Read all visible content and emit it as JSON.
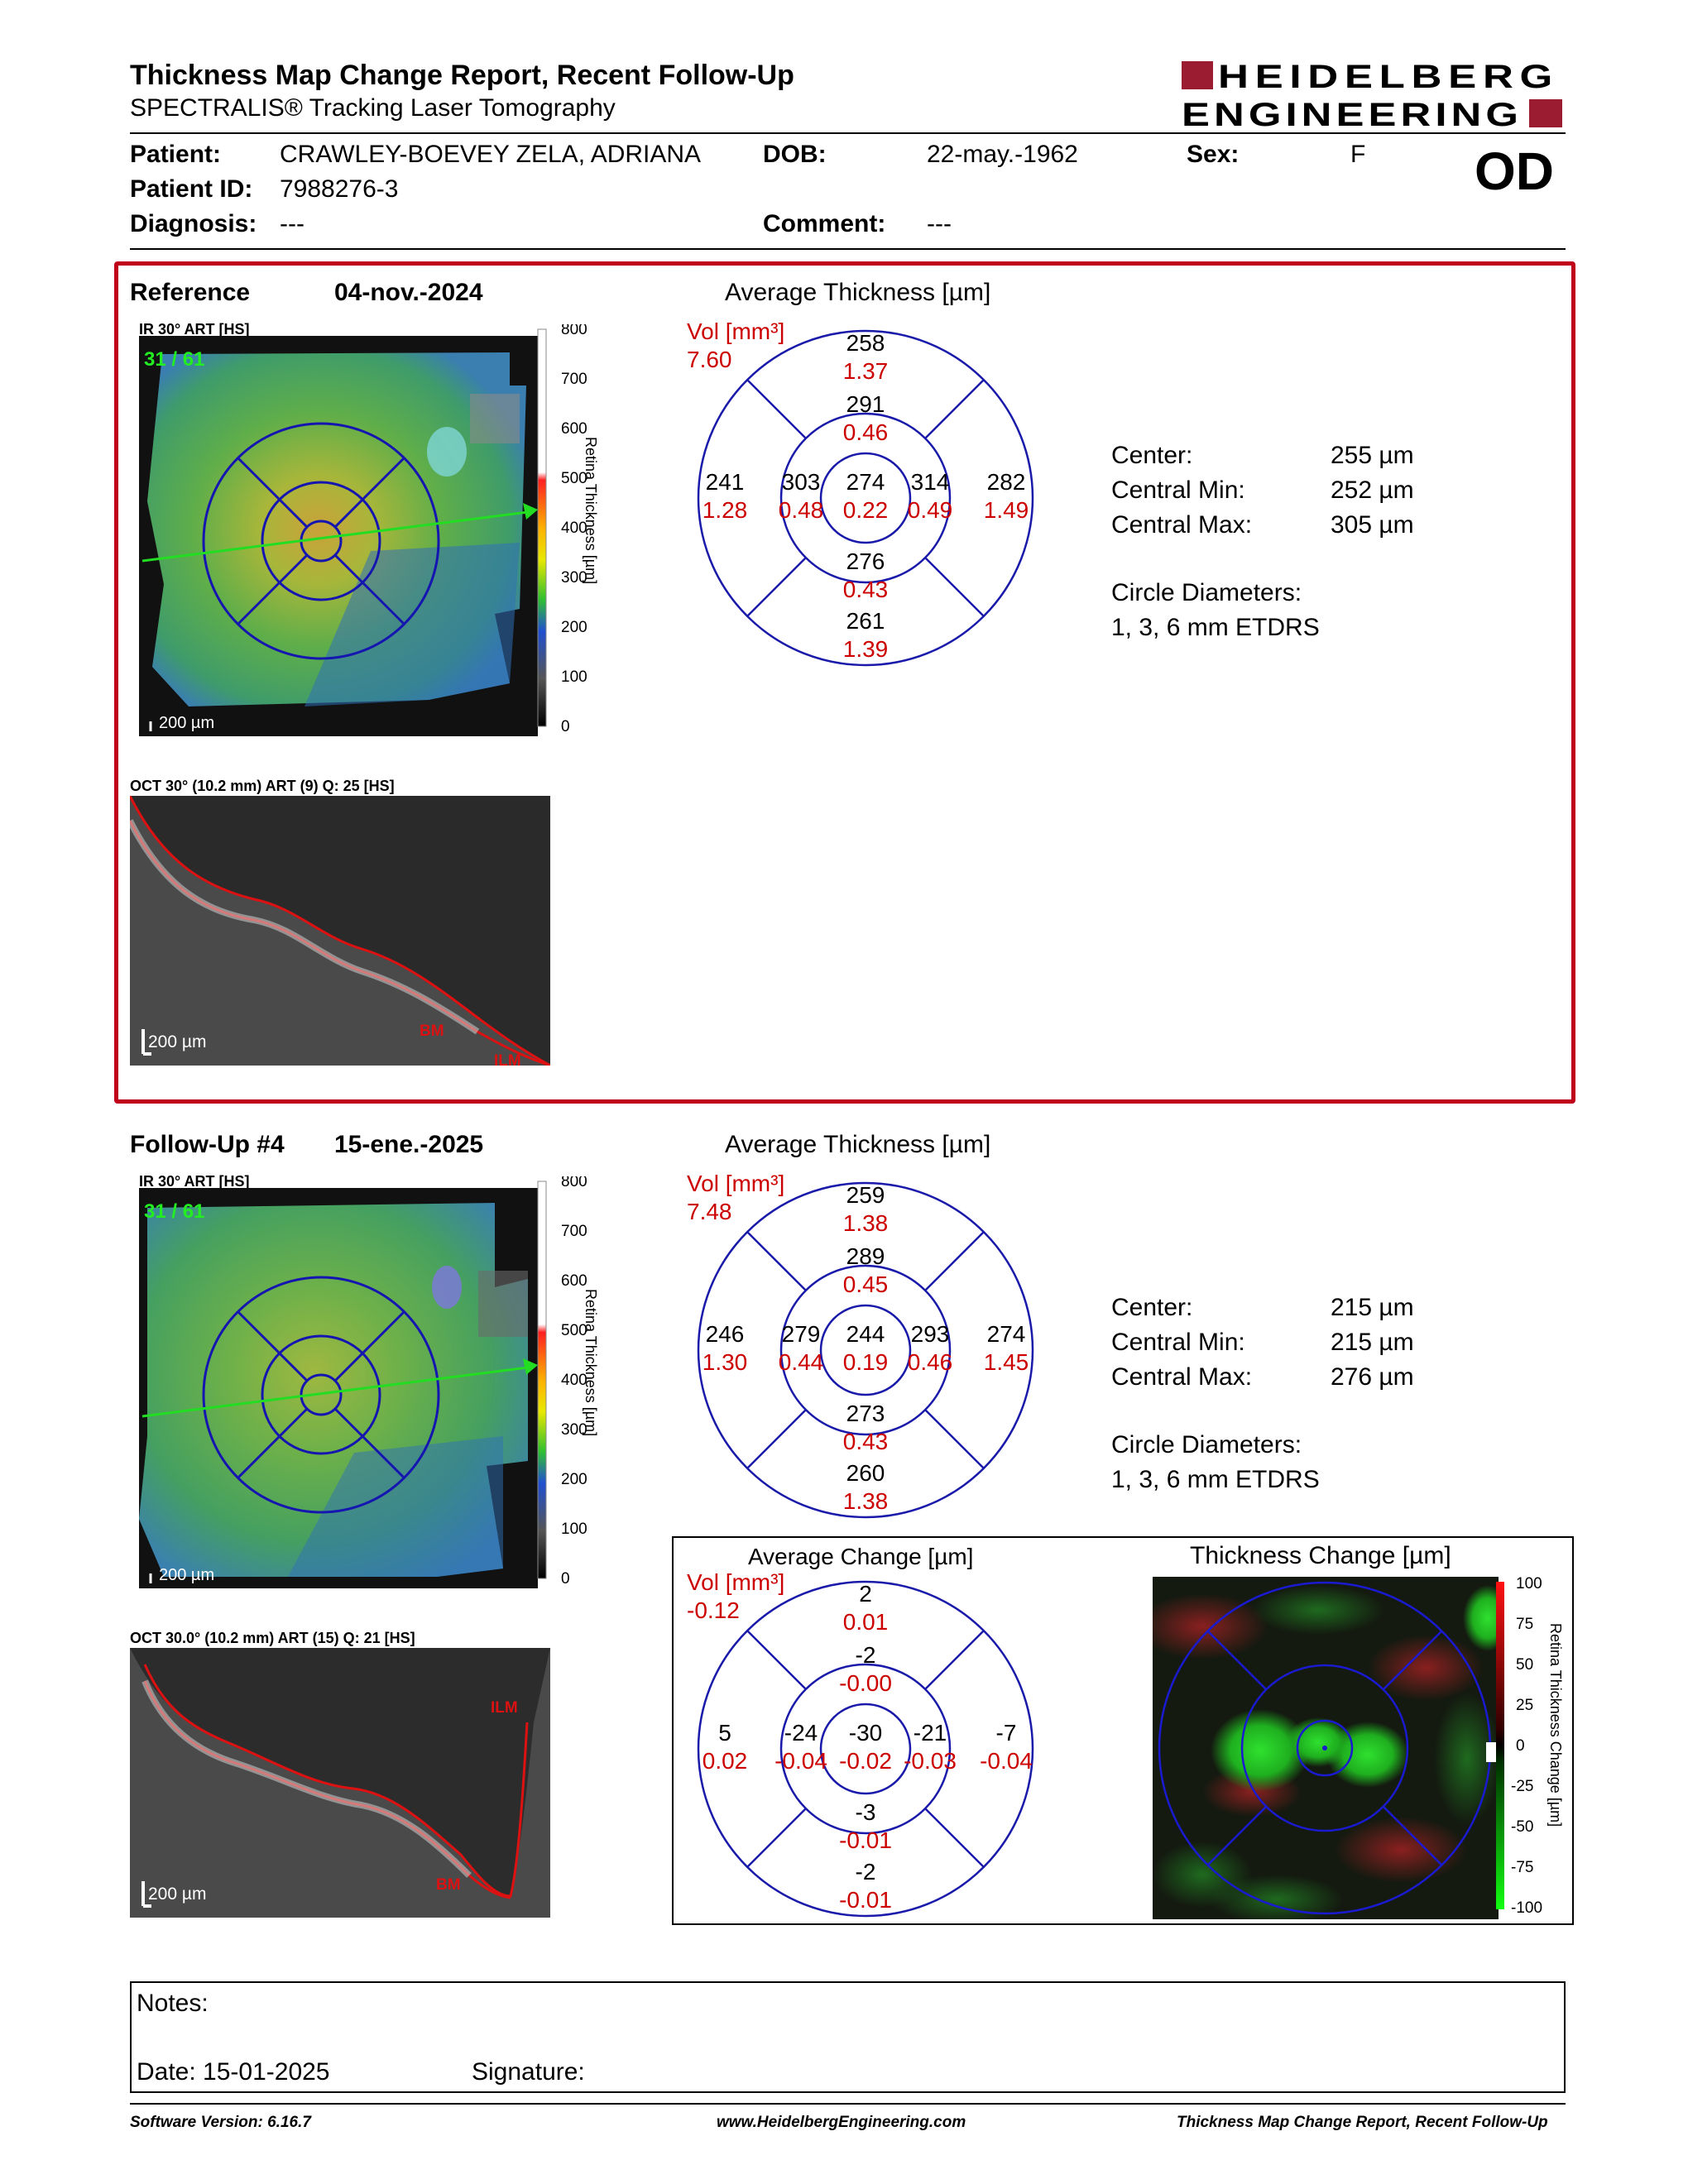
{
  "header": {
    "title": "Thickness Map Change Report, Recent Follow-Up",
    "subtitle": "SPECTRALIS® Tracking Laser Tomography",
    "logo_line1": "HEIDELBERG",
    "logo_line2": "ENGINEERING",
    "brand_color": "#9b1b30"
  },
  "patient": {
    "patient_label": "Patient:",
    "patient_value": "CRAWLEY-BOEVEY ZELA, ADRIANA",
    "dob_label": "DOB:",
    "dob_value": "22-may.-1962",
    "sex_label": "Sex:",
    "sex_value": "F",
    "id_label": "Patient ID:",
    "id_value": "7988276-3",
    "diagnosis_label": "Diagnosis:",
    "diagnosis_value": "---",
    "comment_label": "Comment:",
    "comment_value": "---",
    "eye": "OD"
  },
  "reference": {
    "label": "Reference",
    "date": "04-nov.-2024",
    "ir_caption": "IR 30° ART [HS]",
    "frame": "31 / 61",
    "scale": "200 µm",
    "colorbar_ticks": [
      "800",
      "700",
      "600",
      "500",
      "400",
      "300",
      "200",
      "100",
      "0"
    ],
    "colorbar_title": "Retina Thickness [µm]",
    "oct_caption": "OCT 30° (10.2 mm) ART (9) Q: 25 [HS]",
    "oct_scale": "200 µm",
    "oct_labels": [
      "BM",
      "ILM"
    ],
    "avg_title": "Average Thickness [µm]",
    "vol_label": "Vol [mm³]",
    "vol_value": "7.60",
    "grid": {
      "outer_sup": [
        "258",
        "1.37"
      ],
      "inner_sup": [
        "291",
        "0.46"
      ],
      "center": [
        "274",
        "0.22"
      ],
      "inner_temp": [
        "303",
        "0.48"
      ],
      "inner_nasal": [
        "314",
        "0.49"
      ],
      "outer_temp": [
        "241",
        "1.28"
      ],
      "outer_nasal": [
        "282",
        "1.49"
      ],
      "inner_inf": [
        "276",
        "0.43"
      ],
      "outer_inf": [
        "261",
        "1.39"
      ]
    },
    "center_label": "Center:",
    "center_value": "255 µm",
    "cmin_label": "Central Min:",
    "cmin_value": "252 µm",
    "cmax_label": "Central Max:",
    "cmax_value": "305 µm",
    "diam_label": "Circle Diameters:",
    "diam_value": "1, 3, 6 mm ETDRS"
  },
  "followup": {
    "label": "Follow-Up #4",
    "date": "15-ene.-2025",
    "ir_caption": "IR 30° ART [HS]",
    "frame": "31 / 61",
    "scale": "200 µm",
    "colorbar_ticks": [
      "800",
      "700",
      "600",
      "500",
      "400",
      "300",
      "200",
      "100",
      "0"
    ],
    "colorbar_title": "Retina Thickness [µm]",
    "oct_caption": "OCT 30.0° (10.2 mm) ART (15) Q: 21 [HS]",
    "oct_scale": "200 µm",
    "oct_labels": [
      "ILM",
      "BM"
    ],
    "avg_title": "Average Thickness [µm]",
    "vol_label": "Vol [mm³]",
    "vol_value": "7.48",
    "grid": {
      "outer_sup": [
        "259",
        "1.38"
      ],
      "inner_sup": [
        "289",
        "0.45"
      ],
      "center": [
        "244",
        "0.19"
      ],
      "inner_temp": [
        "279",
        "0.44"
      ],
      "inner_nasal": [
        "293",
        "0.46"
      ],
      "outer_temp": [
        "246",
        "1.30"
      ],
      "outer_nasal": [
        "274",
        "1.45"
      ],
      "inner_inf": [
        "273",
        "0.43"
      ],
      "outer_inf": [
        "260",
        "1.38"
      ]
    },
    "center_label": "Center:",
    "center_value": "215 µm",
    "cmin_label": "Central Min:",
    "cmin_value": "215 µm",
    "cmax_label": "Central Max:",
    "cmax_value": "276 µm",
    "diam_label": "Circle Diameters:",
    "diam_value": "1, 3, 6 mm ETDRS"
  },
  "change": {
    "avg_title": "Average Change [µm]",
    "vol_label": "Vol [mm³]",
    "vol_value": "-0.12",
    "grid": {
      "outer_sup": [
        "2",
        "0.01"
      ],
      "inner_sup": [
        "-2",
        "-0.00"
      ],
      "center": [
        "-30",
        "-0.02"
      ],
      "inner_temp": [
        "-24",
        "-0.04"
      ],
      "inner_nasal": [
        "-21",
        "-0.03"
      ],
      "outer_temp": [
        "5",
        "0.02"
      ],
      "outer_nasal": [
        "-7",
        "-0.04"
      ],
      "inner_inf": [
        "-3",
        "-0.01"
      ],
      "outer_inf": [
        "-2",
        "-0.01"
      ]
    },
    "map_title": "Thickness Change [µm]",
    "colorbar_ticks": [
      "100",
      "75",
      "50",
      "25",
      "0",
      "-25",
      "-50",
      "-75",
      "-100"
    ],
    "colorbar_title": "Retina Thickness Change [µm]"
  },
  "notes": {
    "notes_label": "Notes:",
    "date_label": "Date: 15-01-2025",
    "signature_label": "Signature:"
  },
  "footer": {
    "software": "Software Version: 6.16.7",
    "website": "www.HeidelbergEngineering.com",
    "report": "Thickness Map Change Report, Recent Follow-Up"
  }
}
